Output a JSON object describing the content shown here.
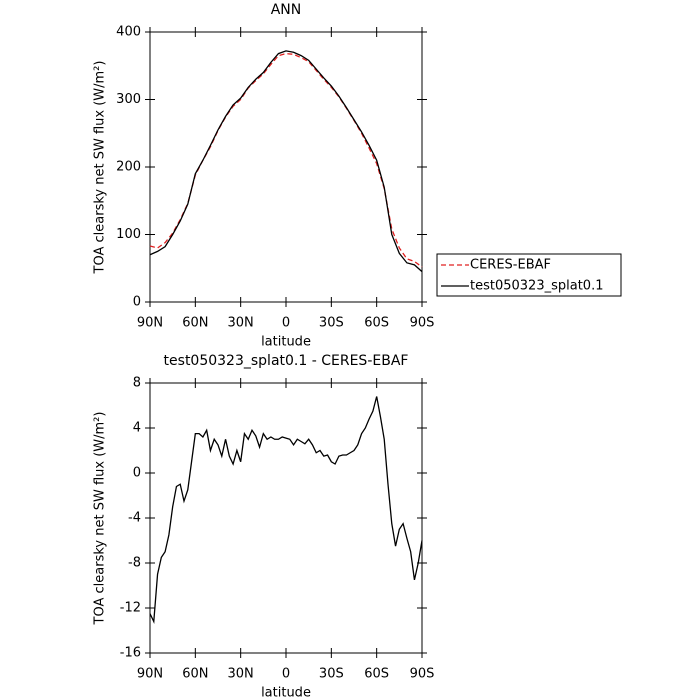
{
  "chart_data": [
    {
      "type": "line",
      "title": "ANN",
      "x_label": "latitude",
      "y_label": "TOA clearsky net SW flux (W/m²)",
      "x": [
        90,
        85,
        80,
        75,
        70,
        65,
        60,
        55,
        50,
        45,
        40,
        35,
        30,
        25,
        20,
        15,
        10,
        5,
        0,
        -5,
        -10,
        -15,
        -20,
        -25,
        -30,
        -35,
        -40,
        -45,
        -50,
        -55,
        -60,
        -65,
        -70,
        -75,
        -80,
        -85,
        -90
      ],
      "series": [
        {
          "name": "CERES-EBAF",
          "color": "#e02020",
          "line_style": "dashed",
          "values": [
            83,
            80,
            88,
            102,
            122,
            146,
            188,
            210,
            230,
            254,
            274,
            290,
            300,
            317,
            328,
            338,
            352,
            365,
            368,
            367,
            362,
            356,
            343,
            330,
            318,
            304,
            287,
            269,
            250,
            228,
            205,
            168,
            108,
            80,
            64,
            60,
            52
          ]
        },
        {
          "name": "test050323_splat0.1",
          "color": "#000000",
          "line_style": "solid",
          "values": [
            70,
            75,
            82,
            100,
            120,
            145,
            190,
            210,
            232,
            255,
            275,
            292,
            302,
            318,
            330,
            340,
            355,
            368,
            372,
            370,
            365,
            358,
            345,
            332,
            320,
            305,
            288,
            270,
            252,
            232,
            210,
            170,
            100,
            72,
            58,
            55,
            45
          ]
        }
      ],
      "xlim": [
        90,
        -90
      ],
      "xticks": [
        {
          "value": 90,
          "label": "90N"
        },
        {
          "value": 60,
          "label": "60N"
        },
        {
          "value": 30,
          "label": "30N"
        },
        0,
        {
          "value": -30,
          "label": "30S"
        },
        {
          "value": -60,
          "label": "60S"
        },
        {
          "value": -90,
          "label": "90S"
        }
      ],
      "ylim": [
        0,
        400
      ],
      "yticks": [
        0,
        100,
        200,
        300,
        400
      ],
      "legend": "right"
    },
    {
      "type": "line",
      "title": "test050323_splat0.1 - CERES-EBAF",
      "x_label": "latitude",
      "y_label": "TOA clearsky net SW flux (W/m²)",
      "x": [
        90,
        87.5,
        85,
        82.5,
        80,
        77.5,
        75,
        72.5,
        70,
        67.5,
        65,
        62.5,
        60,
        57.5,
        55,
        52.5,
        50,
        47.5,
        45,
        42.5,
        40,
        37.5,
        35,
        32.5,
        30,
        27.5,
        25,
        22.5,
        20,
        17.5,
        15,
        12.5,
        10,
        7.5,
        5,
        2.5,
        0,
        -2.5,
        -5,
        -7.5,
        -10,
        -12.5,
        -15,
        -17.5,
        -20,
        -22.5,
        -25,
        -27.5,
        -30,
        -32.5,
        -35,
        -37.5,
        -40,
        -42.5,
        -45,
        -47.5,
        -50,
        -52.5,
        -55,
        -57.5,
        -60,
        -62.5,
        -65,
        -67.5,
        -70,
        -72.5,
        -75,
        -77.5,
        -80,
        -82.5,
        -85,
        -87.5,
        -90
      ],
      "values": [
        -12.5,
        -13.2,
        -9,
        -7.5,
        -7,
        -5.5,
        -3,
        -1.2,
        -1,
        -2.5,
        -1.5,
        1,
        3.5,
        3.5,
        3.2,
        3.8,
        2,
        3,
        2.5,
        1.5,
        3,
        1.5,
        0.8,
        2,
        1,
        3.5,
        3,
        3.8,
        3.3,
        2.3,
        3.5,
        3,
        3.2,
        3,
        3,
        3.2,
        3.1,
        3,
        2.5,
        3,
        2.8,
        2.6,
        3,
        2.5,
        1.8,
        2,
        1.5,
        1.6,
        1,
        0.8,
        1.5,
        1.6,
        1.6,
        1.8,
        2,
        2.5,
        3.5,
        4,
        4.8,
        5.5,
        6.8,
        5,
        3,
        -1,
        -4.5,
        -6.5,
        -5,
        -4.5,
        -5.8,
        -7,
        -9.5,
        -8,
        -6
      ],
      "color": "#000000",
      "xlim": [
        90,
        -90
      ],
      "xticks": [
        {
          "value": 90,
          "label": "90N"
        },
        {
          "value": 60,
          "label": "60N"
        },
        {
          "value": 30,
          "label": "30N"
        },
        0,
        {
          "value": -30,
          "label": "30S"
        },
        {
          "value": -60,
          "label": "60S"
        },
        {
          "value": -90,
          "label": "90S"
        }
      ],
      "ylim": [
        -16,
        8
      ],
      "yticks": [
        -16,
        -12,
        -8,
        -4,
        0,
        4,
        8
      ]
    }
  ]
}
